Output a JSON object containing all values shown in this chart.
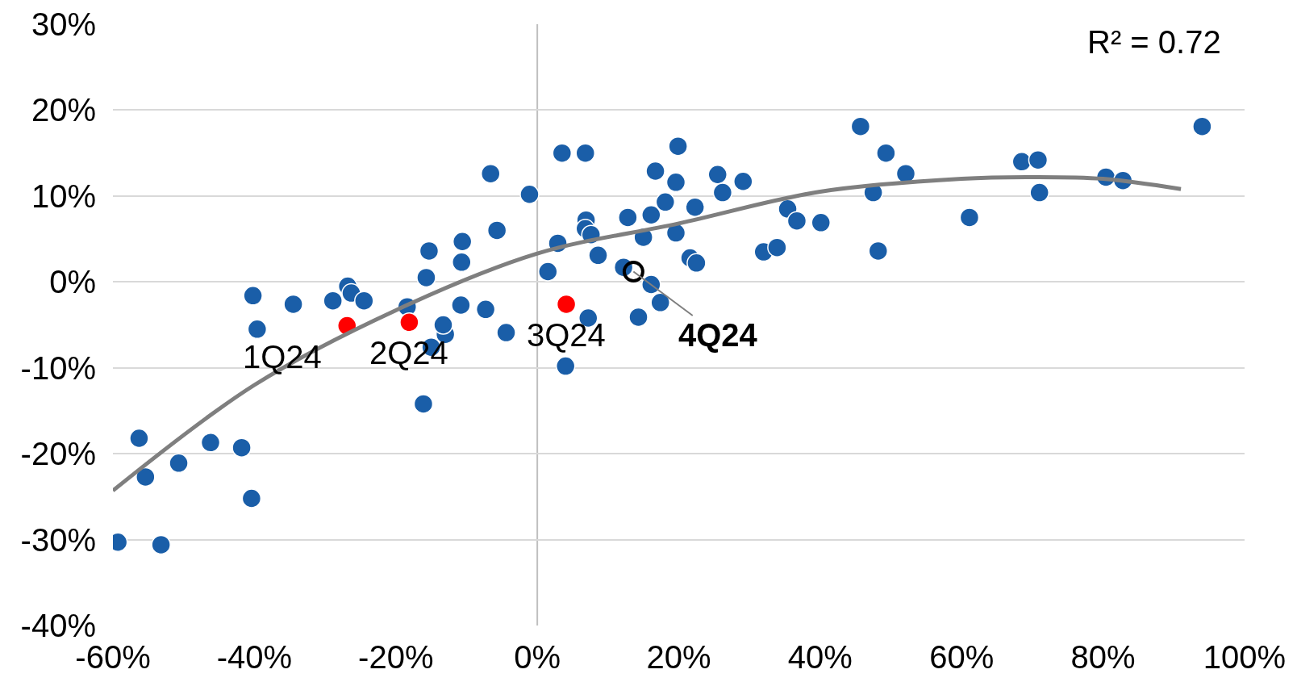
{
  "chart_data": {
    "type": "scatter",
    "marker": "circle",
    "grid": "y",
    "legend": false,
    "xlim": [
      -60,
      100
    ],
    "ylim": [
      -40,
      30
    ],
    "xticks": [
      {
        "value": -60,
        "label": "-60%"
      },
      {
        "value": -40,
        "label": "-40%"
      },
      {
        "value": -20,
        "label": "-20%"
      },
      {
        "value": 0,
        "label": "0%"
      },
      {
        "value": 20,
        "label": "20%"
      },
      {
        "value": 40,
        "label": "40%"
      },
      {
        "value": 60,
        "label": "60%"
      },
      {
        "value": 80,
        "label": "80%"
      },
      {
        "value": 100,
        "label": "100%"
      }
    ],
    "yticks": [
      {
        "value": -40,
        "label": "-40%"
      },
      {
        "value": -30,
        "label": "-30%"
      },
      {
        "value": -20,
        "label": "-20%"
      },
      {
        "value": -10,
        "label": "-10%"
      },
      {
        "value": 0,
        "label": "0%"
      },
      {
        "value": 10,
        "label": "10%"
      },
      {
        "value": 20,
        "label": "20%"
      },
      {
        "value": 30,
        "label": "30%"
      }
    ],
    "ref_lines": [
      {
        "axis": "x",
        "value": 0,
        "color": "#bfbfbf"
      }
    ],
    "series": [
      {
        "color": "#1a5ea8",
        "x": [
          -59.3,
          -56.3,
          -55.4,
          -53.2,
          -50.7,
          -46.2,
          -41.8,
          -40.4,
          -40.2,
          -39.6,
          -34.5,
          -28.9,
          -26.8,
          -26.3,
          -24.5,
          -18.4,
          -15.3,
          -15.7,
          -16.1,
          -15.0,
          -13.0,
          -13.3,
          -10.6,
          -10.7,
          -10.8,
          -7.3,
          -6.6,
          -5.7,
          -4.4,
          -1.1,
          1.5,
          2.9,
          3.5,
          4.0,
          6.8,
          6.9,
          6.8,
          7.6,
          7.2,
          8.6,
          12.8,
          12.2,
          14.3,
          15.0,
          16.1,
          16.1,
          16.7,
          17.4,
          18.1,
          19.6,
          19.6,
          19.9,
          21.6,
          22.3,
          22.5,
          25.5,
          26.2,
          29.1,
          32.0,
          33.9,
          35.4,
          36.7,
          40.1,
          45.7,
          47.5,
          48.2,
          49.3,
          52.1,
          61.1,
          68.5,
          70.8,
          71.0,
          80.4,
          82.8,
          94.0
        ],
        "values": [
          -30.3,
          -18.2,
          -22.7,
          -30.6,
          -21.1,
          -18.7,
          -19.3,
          -25.2,
          -1.6,
          -5.5,
          -2.6,
          -2.2,
          -0.5,
          -1.3,
          -2.2,
          -2.9,
          3.6,
          0.5,
          -14.2,
          -7.6,
          -6.1,
          -5.0,
          4.7,
          2.3,
          -2.7,
          -3.2,
          12.6,
          6.0,
          -5.9,
          10.2,
          1.2,
          4.5,
          15.0,
          -9.8,
          15.0,
          7.2,
          6.2,
          5.5,
          -4.2,
          3.1,
          7.5,
          1.7,
          -4.1,
          5.2,
          7.8,
          -0.3,
          12.9,
          -2.4,
          9.3,
          11.6,
          5.7,
          15.8,
          2.8,
          8.7,
          2.2,
          12.5,
          10.4,
          11.7,
          3.5,
          4.0,
          8.5,
          7.1,
          6.9,
          18.1,
          10.4,
          3.6,
          15.0,
          12.6,
          7.5,
          14.0,
          14.2,
          10.4,
          12.2,
          11.8,
          18.1
        ]
      },
      {
        "color": "#ff0000",
        "x": [
          -26.9,
          -18.1,
          4.1
        ],
        "values": [
          -5.1,
          -4.7,
          -2.6
        ]
      },
      {
        "color": "#000000",
        "x": [
          13.6
        ],
        "values": [
          1.2
        ]
      },
      {
        "type": "line",
        "color": "#7f7f7f",
        "marker": "none",
        "x": [
          -60,
          -40,
          -20,
          0,
          20,
          40,
          60,
          70,
          80,
          91
        ],
        "values": [
          -24.3,
          -12,
          -3.3,
          3.3,
          6.8,
          10.5,
          12,
          12.2,
          12,
          10.8
        ]
      }
    ],
    "annotations": [
      "R² = 0.72",
      {
        "text": "1Q24",
        "x": -26.9,
        "y": -5.1
      },
      {
        "text": "2Q24",
        "x": -18.1,
        "y": -4.7
      },
      {
        "text": "3Q24",
        "x": 4.1,
        "y": -2.6
      },
      {
        "text": "4Q24",
        "x": 13.6,
        "y": 1.2
      }
    ]
  }
}
